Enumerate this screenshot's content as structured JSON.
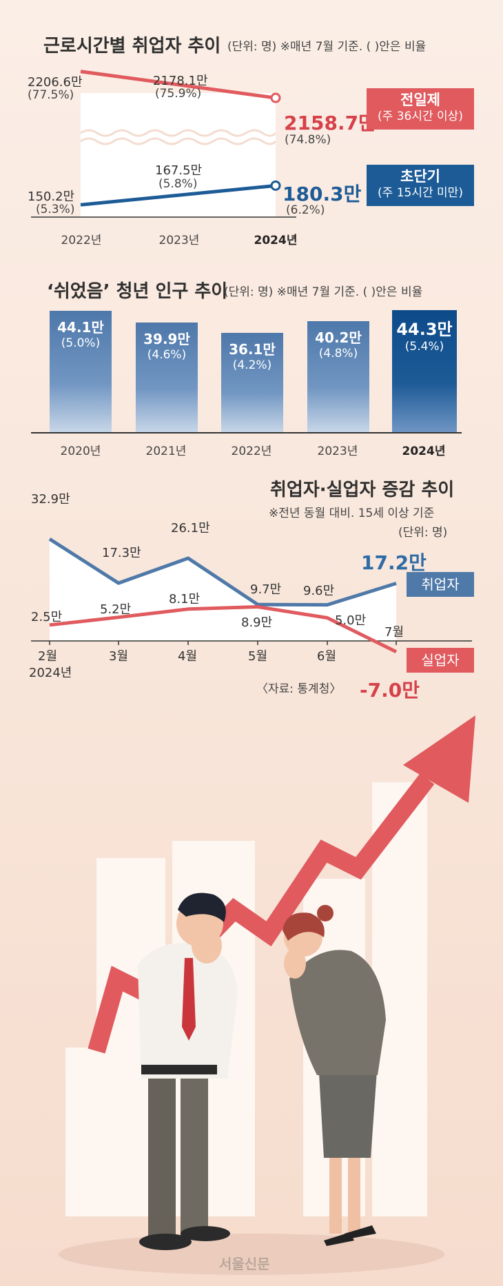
{
  "colors": {
    "red": "#e05a5e",
    "blue": "#4f79a8",
    "dark_blue": "#1d5b97",
    "bg": "#fbeee6"
  },
  "chart_data": [
    {
      "type": "line",
      "title": "근로시간별 취업자 추이",
      "subtitle": "(단위: 명) ※매년 7월 기준. ( )안은 비율",
      "categories": [
        "2022년",
        "2023년",
        "2024년"
      ],
      "series": [
        {
          "name": "전일제",
          "note": "(주 36시간 이상)",
          "values": [
            2206.6,
            2178.1,
            2158.7
          ],
          "labels": [
            "2206.6만",
            "2178.1만",
            "2158.7만"
          ],
          "pct": [
            "(77.5%)",
            "(75.9%)",
            "(74.8%)"
          ]
        },
        {
          "name": "초단기",
          "note": "(주 15시간 미만)",
          "values": [
            150.2,
            167.5,
            180.3
          ],
          "labels": [
            "150.2만",
            "167.5만",
            "180.3만"
          ],
          "pct": [
            "(5.3%)",
            "(5.8%)",
            "(6.2%)"
          ]
        }
      ]
    },
    {
      "type": "bar",
      "title": "‘쉬었음’ 청년 인구 추이",
      "subtitle": "(단위: 명) ※매년 7월 기준. ( )안은 비율",
      "categories": [
        "2020년",
        "2021년",
        "2022년",
        "2023년",
        "2024년"
      ],
      "values": [
        44.1,
        39.9,
        36.1,
        40.2,
        44.3
      ],
      "labels": [
        "44.1만",
        "39.9만",
        "36.1만",
        "40.2만",
        "44.3만"
      ],
      "pct": [
        "(5.0%)",
        "(4.6%)",
        "(4.2%)",
        "(4.8%)",
        "(5.4%)"
      ]
    },
    {
      "type": "line",
      "title": "취업자·실업자 증감 추이",
      "subtitle": "※전년 동월 대비. 15세 이상 기준",
      "unit": "(단위: 명)",
      "categories": [
        "2월",
        "3월",
        "4월",
        "5월",
        "6월",
        "7월"
      ],
      "year_label": "2024년",
      "series": [
        {
          "name": "취업자",
          "values": [
            32.9,
            17.3,
            26.1,
            9.7,
            9.6,
            17.2
          ],
          "labels": [
            "32.9만",
            "17.3만",
            "26.1만",
            "9.7만",
            "9.6만",
            "17.2만"
          ]
        },
        {
          "name": "실업자",
          "values": [
            2.5,
            5.2,
            8.1,
            8.9,
            5.0,
            -7.0
          ],
          "labels": [
            "2.5만",
            "5.2만",
            "8.1만",
            "8.9만",
            "5.0만",
            "-7.0만"
          ]
        }
      ],
      "source": "〈자료: 통계청〉"
    }
  ],
  "credit": "서울신문"
}
